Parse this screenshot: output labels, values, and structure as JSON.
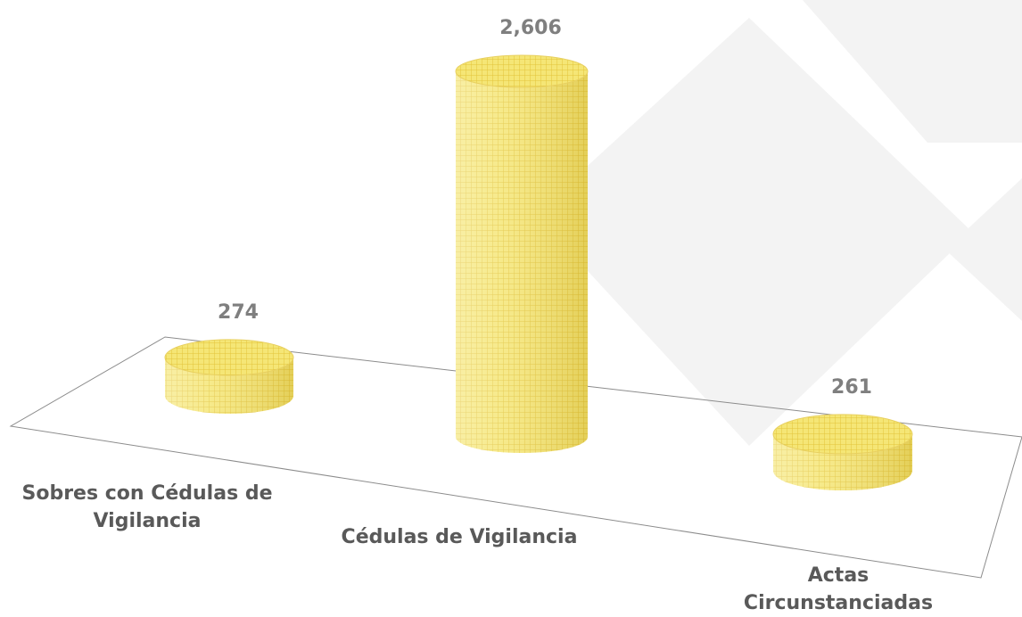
{
  "chart_data": {
    "type": "bar3d",
    "categories": [
      "Sobres con Cédulas de Vigilancia",
      "Cédulas de Vigilancia",
      "Actas Circunstanciadas"
    ],
    "values": [
      274,
      2606,
      261
    ],
    "value_labels": [
      "274",
      "2,606",
      "261"
    ],
    "color": "#f5e676"
  }
}
